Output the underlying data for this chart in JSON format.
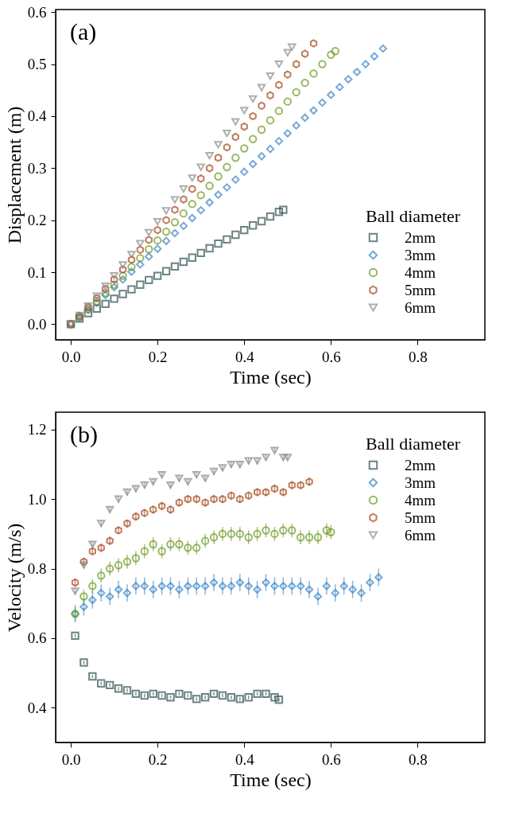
{
  "chart_data": [
    {
      "type": "scatter",
      "xlabel": "Time (sec)",
      "ylabel": "Displacement (m)",
      "legend_title": "Ball diameter",
      "annotations": [
        "(a)"
      ],
      "legend": "bottom right",
      "grid": false,
      "xlim": [
        -0.035,
        0.955
      ],
      "ylim": [
        -0.03,
        0.605
      ],
      "xticks": [
        {
          "value": 0,
          "label": "0.0"
        },
        0.2,
        0.4,
        0.6,
        0.8
      ],
      "yticks": [
        {
          "value": 0,
          "label": "0.0"
        },
        0.1,
        0.2,
        0.3,
        0.4,
        0.5,
        0.6
      ],
      "series": [
        {
          "name": "2mm",
          "color": "#2f4f4f",
          "marker": "square",
          "x": [
            0,
            0.02,
            0.04,
            0.06,
            0.08,
            0.1,
            0.12,
            0.14,
            0.16,
            0.18,
            0.2,
            0.22,
            0.24,
            0.26,
            0.28,
            0.3,
            0.32,
            0.34,
            0.36,
            0.38,
            0.4,
            0.42,
            0.44,
            0.46,
            0.48,
            0.49
          ],
          "values": [
            0,
            0.011,
            0.021,
            0.03,
            0.039,
            0.049,
            0.058,
            0.067,
            0.076,
            0.085,
            0.093,
            0.102,
            0.111,
            0.12,
            0.128,
            0.137,
            0.146,
            0.155,
            0.163,
            0.172,
            0.181,
            0.19,
            0.198,
            0.207,
            0.216,
            0.22
          ]
        },
        {
          "name": "3mm",
          "color": "#3d85c6",
          "marker": "diamond",
          "x": [
            0,
            0.02,
            0.04,
            0.06,
            0.08,
            0.1,
            0.12,
            0.14,
            0.16,
            0.18,
            0.2,
            0.22,
            0.24,
            0.26,
            0.28,
            0.3,
            0.32,
            0.34,
            0.36,
            0.38,
            0.4,
            0.42,
            0.44,
            0.46,
            0.48,
            0.5,
            0.52,
            0.54,
            0.56,
            0.58,
            0.6,
            0.62,
            0.64,
            0.66,
            0.68,
            0.7,
            0.72
          ],
          "values": [
            0,
            0.012,
            0.027,
            0.041,
            0.056,
            0.071,
            0.086,
            0.101,
            0.115,
            0.13,
            0.145,
            0.16,
            0.175,
            0.189,
            0.204,
            0.219,
            0.234,
            0.249,
            0.263,
            0.278,
            0.293,
            0.308,
            0.323,
            0.337,
            0.352,
            0.367,
            0.382,
            0.397,
            0.411,
            0.426,
            0.441,
            0.456,
            0.471,
            0.485,
            0.5,
            0.515,
            0.53
          ]
        },
        {
          "name": "4mm",
          "color": "#6b9a1f",
          "marker": "circle",
          "x": [
            0,
            0.02,
            0.04,
            0.06,
            0.08,
            0.1,
            0.12,
            0.14,
            0.16,
            0.18,
            0.2,
            0.22,
            0.24,
            0.26,
            0.28,
            0.3,
            0.32,
            0.34,
            0.36,
            0.38,
            0.4,
            0.42,
            0.44,
            0.46,
            0.48,
            0.5,
            0.52,
            0.54,
            0.56,
            0.58,
            0.6,
            0.61
          ],
          "values": [
            0,
            0.014,
            0.029,
            0.044,
            0.06,
            0.076,
            0.093,
            0.11,
            0.127,
            0.144,
            0.161,
            0.178,
            0.196,
            0.213,
            0.231,
            0.248,
            0.266,
            0.284,
            0.302,
            0.32,
            0.338,
            0.356,
            0.374,
            0.392,
            0.41,
            0.428,
            0.446,
            0.464,
            0.482,
            0.5,
            0.518,
            0.525
          ]
        },
        {
          "name": "5mm",
          "color": "#a5471a",
          "x": [
            0,
            0.02,
            0.04,
            0.06,
            0.08,
            0.1,
            0.12,
            0.14,
            0.16,
            0.18,
            0.2,
            0.22,
            0.24,
            0.26,
            0.28,
            0.3,
            0.32,
            0.34,
            0.36,
            0.38,
            0.4,
            0.42,
            0.44,
            0.46,
            0.48,
            0.5,
            0.52,
            0.54,
            0.56
          ],
          "values": [
            0,
            0.016,
            0.033,
            0.05,
            0.068,
            0.086,
            0.105,
            0.124,
            0.143,
            0.162,
            0.181,
            0.2,
            0.22,
            0.24,
            0.26,
            0.28,
            0.3,
            0.32,
            0.34,
            0.36,
            0.38,
            0.4,
            0.42,
            0.44,
            0.46,
            0.48,
            0.5,
            0.52,
            0.54
          ]
        },
        {
          "name": "6mm",
          "color": "#8c8c8c",
          "marker": "triangle",
          "x": [
            0,
            0.02,
            0.04,
            0.06,
            0.08,
            0.1,
            0.12,
            0.14,
            0.16,
            0.18,
            0.2,
            0.22,
            0.24,
            0.26,
            0.28,
            0.3,
            0.32,
            0.34,
            0.36,
            0.38,
            0.4,
            0.42,
            0.44,
            0.46,
            0.48,
            0.5,
            0.51
          ],
          "values": [
            0,
            0.017,
            0.035,
            0.054,
            0.073,
            0.093,
            0.114,
            0.134,
            0.155,
            0.176,
            0.197,
            0.218,
            0.239,
            0.26,
            0.281,
            0.302,
            0.324,
            0.345,
            0.367,
            0.389,
            0.411,
            0.433,
            0.455,
            0.477,
            0.5,
            0.522,
            0.533
          ]
        }
      ]
    },
    {
      "type": "scatter",
      "xlabel": "Time (sec)",
      "ylabel": "Velocity (m/s)",
      "legend_title": "Ball diameter",
      "annotations": [
        "(b)"
      ],
      "legend": "top right",
      "grid": false,
      "xlim": [
        -0.035,
        0.955
      ],
      "ylim": [
        0.3,
        1.25
      ],
      "xticks": [
        {
          "value": 0,
          "label": "0.0"
        },
        0.2,
        0.4,
        0.6,
        0.8
      ],
      "yticks": [
        0.4,
        0.6,
        0.8,
        {
          "value": 1,
          "label": "1.0"
        },
        1.2
      ],
      "series": [
        {
          "name": "2mm",
          "color": "#2f4f4f",
          "marker": "square",
          "x": [
            0.01,
            0.03,
            0.05,
            0.07,
            0.09,
            0.11,
            0.13,
            0.15,
            0.17,
            0.19,
            0.21,
            0.23,
            0.25,
            0.27,
            0.29,
            0.31,
            0.33,
            0.35,
            0.37,
            0.39,
            0.41,
            0.43,
            0.45,
            0.47,
            0.48
          ],
          "values": [
            0.607,
            0.53,
            0.49,
            0.47,
            0.465,
            0.455,
            0.45,
            0.44,
            0.435,
            0.44,
            0.435,
            0.43,
            0.44,
            0.435,
            0.425,
            0.43,
            0.44,
            0.435,
            0.43,
            0.425,
            0.43,
            0.44,
            0.44,
            0.43,
            0.423
          ],
          "errors": [
            0.005,
            0.005,
            0.005,
            0.005,
            0.005,
            0.005,
            0.005,
            0.005,
            0.005,
            0.005,
            0.005,
            0.005,
            0.005,
            0.005,
            0.005,
            0.005,
            0.005,
            0.005,
            0.005,
            0.005,
            0.005,
            0.005,
            0.005,
            0.005,
            0.005
          ]
        },
        {
          "name": "3mm",
          "color": "#3d85c6",
          "marker": "diamond",
          "x": [
            0.01,
            0.03,
            0.05,
            0.07,
            0.09,
            0.11,
            0.13,
            0.15,
            0.17,
            0.19,
            0.21,
            0.23,
            0.25,
            0.27,
            0.29,
            0.31,
            0.33,
            0.35,
            0.37,
            0.39,
            0.41,
            0.43,
            0.45,
            0.47,
            0.49,
            0.51,
            0.53,
            0.55,
            0.57,
            0.59,
            0.61,
            0.63,
            0.65,
            0.67,
            0.69,
            0.71
          ],
          "values": [
            0.67,
            0.69,
            0.71,
            0.73,
            0.72,
            0.74,
            0.73,
            0.75,
            0.75,
            0.74,
            0.75,
            0.75,
            0.74,
            0.75,
            0.75,
            0.75,
            0.76,
            0.75,
            0.75,
            0.76,
            0.75,
            0.74,
            0.76,
            0.75,
            0.75,
            0.75,
            0.75,
            0.74,
            0.72,
            0.75,
            0.73,
            0.75,
            0.74,
            0.73,
            0.76,
            0.775
          ],
          "errors": [
            0.025,
            0.025,
            0.025,
            0.025,
            0.025,
            0.025,
            0.025,
            0.025,
            0.025,
            0.025,
            0.025,
            0.025,
            0.025,
            0.025,
            0.025,
            0.025,
            0.025,
            0.025,
            0.025,
            0.025,
            0.025,
            0.025,
            0.025,
            0.025,
            0.025,
            0.025,
            0.025,
            0.025,
            0.025,
            0.025,
            0.025,
            0.025,
            0.025,
            0.025,
            0.025,
            0.025
          ]
        },
        {
          "name": "4mm",
          "color": "#6b9a1f",
          "marker": "circle",
          "x": [
            0.01,
            0.03,
            0.05,
            0.07,
            0.09,
            0.11,
            0.13,
            0.15,
            0.17,
            0.19,
            0.21,
            0.23,
            0.25,
            0.27,
            0.29,
            0.31,
            0.33,
            0.35,
            0.37,
            0.39,
            0.41,
            0.43,
            0.45,
            0.47,
            0.49,
            0.51,
            0.53,
            0.55,
            0.57,
            0.59,
            0.6
          ],
          "values": [
            0.67,
            0.72,
            0.75,
            0.78,
            0.8,
            0.81,
            0.82,
            0.83,
            0.85,
            0.87,
            0.85,
            0.87,
            0.87,
            0.86,
            0.86,
            0.88,
            0.89,
            0.9,
            0.9,
            0.9,
            0.89,
            0.9,
            0.91,
            0.9,
            0.91,
            0.91,
            0.89,
            0.89,
            0.89,
            0.91,
            0.905
          ],
          "errors": [
            0.02,
            0.02,
            0.02,
            0.02,
            0.02,
            0.02,
            0.02,
            0.02,
            0.02,
            0.02,
            0.02,
            0.02,
            0.02,
            0.02,
            0.02,
            0.02,
            0.02,
            0.02,
            0.02,
            0.02,
            0.02,
            0.02,
            0.02,
            0.02,
            0.02,
            0.02,
            0.02,
            0.02,
            0.02,
            0.02,
            0.02
          ]
        },
        {
          "name": "5mm",
          "color": "#a5471a",
          "x": [
            0.01,
            0.03,
            0.05,
            0.07,
            0.09,
            0.11,
            0.13,
            0.15,
            0.17,
            0.19,
            0.21,
            0.23,
            0.25,
            0.27,
            0.29,
            0.31,
            0.33,
            0.35,
            0.37,
            0.39,
            0.41,
            0.43,
            0.45,
            0.47,
            0.49,
            0.51,
            0.53,
            0.55
          ],
          "values": [
            0.76,
            0.82,
            0.85,
            0.86,
            0.88,
            0.91,
            0.93,
            0.95,
            0.96,
            0.97,
            0.98,
            0.97,
            0.99,
            1.0,
            1.0,
            0.99,
            1.0,
            1.0,
            1.01,
            1.0,
            1.01,
            1.02,
            1.02,
            1.03,
            1.02,
            1.04,
            1.04,
            1.05
          ],
          "errors": [
            0.01,
            0.01,
            0.01,
            0.01,
            0.01,
            0.01,
            0.01,
            0.01,
            0.01,
            0.01,
            0.01,
            0.01,
            0.01,
            0.01,
            0.01,
            0.01,
            0.01,
            0.01,
            0.01,
            0.01,
            0.01,
            0.01,
            0.01,
            0.01,
            0.01,
            0.01,
            0.01,
            0.01
          ]
        },
        {
          "name": "6mm",
          "color": "#8c8c8c",
          "marker": "triangle",
          "x": [
            0.01,
            0.03,
            0.05,
            0.07,
            0.09,
            0.11,
            0.13,
            0.15,
            0.17,
            0.19,
            0.21,
            0.23,
            0.25,
            0.27,
            0.29,
            0.31,
            0.33,
            0.35,
            0.37,
            0.39,
            0.41,
            0.43,
            0.45,
            0.47,
            0.49,
            0.5
          ],
          "values": [
            0.735,
            0.81,
            0.87,
            0.93,
            0.97,
            1.0,
            1.02,
            1.03,
            1.04,
            1.05,
            1.07,
            1.04,
            1.06,
            1.05,
            1.07,
            1.06,
            1.08,
            1.09,
            1.1,
            1.1,
            1.11,
            1.11,
            1.12,
            1.14,
            1.12,
            1.12
          ],
          "errors": [
            0.01,
            0.01,
            0.01,
            0.01,
            0.01,
            0.01,
            0.01,
            0.01,
            0.01,
            0.01,
            0.01,
            0.01,
            0.01,
            0.01,
            0.01,
            0.01,
            0.01,
            0.01,
            0.01,
            0.01,
            0.01,
            0.01,
            0.01,
            0.01,
            0.01,
            0.01
          ]
        }
      ]
    }
  ]
}
